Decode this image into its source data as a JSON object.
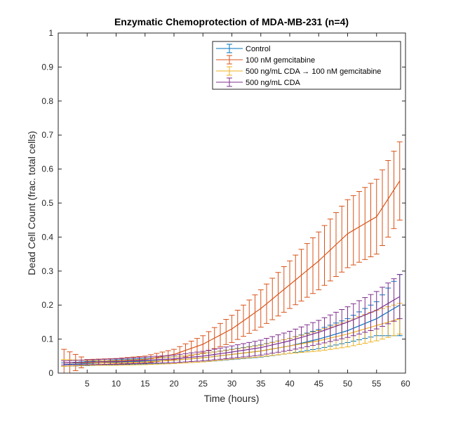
{
  "chart_data": {
    "type": "line",
    "title": "Enzymatic Chemoprotection of MDA-MB-231 (n=4)",
    "xlabel": "Time (hours)",
    "ylabel": "Dead Cell Count (frac. total cells)",
    "xlim": [
      0,
      60
    ],
    "ylim": [
      0,
      1
    ],
    "xticks": [
      5,
      10,
      15,
      20,
      25,
      30,
      35,
      40,
      45,
      50,
      55,
      60
    ],
    "yticks": [
      0,
      0.1,
      0.2,
      0.3,
      0.4,
      0.5,
      0.6,
      0.7,
      0.8,
      0.9,
      1
    ],
    "ytick_labels": [
      "0",
      "0.1",
      "0.2",
      "0.3",
      "0.4",
      "0.5",
      "0.6",
      "0.7",
      "0.8",
      "0.9",
      "1"
    ],
    "grid": false,
    "legend_position": "top-right",
    "error_bars": true,
    "x": [
      1,
      59
    ],
    "series": [
      {
        "name": "Control",
        "color": "#0072bd",
        "x": [
          1,
          5,
          10,
          15,
          20,
          25,
          30,
          35,
          40,
          45,
          50,
          55,
          59
        ],
        "y": [
          0.025,
          0.028,
          0.032,
          0.035,
          0.038,
          0.045,
          0.055,
          0.065,
          0.08,
          0.1,
          0.125,
          0.16,
          0.2
        ],
        "err": [
          0.005,
          0.006,
          0.007,
          0.008,
          0.01,
          0.012,
          0.015,
          0.018,
          0.022,
          0.028,
          0.035,
          0.05,
          0.09
        ]
      },
      {
        "name": "100 nM gemcitabine",
        "color": "#d95319",
        "x": [
          1,
          5,
          10,
          15,
          20,
          25,
          30,
          35,
          40,
          45,
          50,
          55,
          59
        ],
        "y": [
          0.03,
          0.032,
          0.035,
          0.04,
          0.055,
          0.085,
          0.13,
          0.19,
          0.26,
          0.33,
          0.41,
          0.46,
          0.565
        ],
        "err": [
          0.04,
          0.008,
          0.008,
          0.01,
          0.015,
          0.025,
          0.04,
          0.055,
          0.07,
          0.085,
          0.1,
          0.11,
          0.115
        ]
      },
      {
        "name": "500 ng/mL CDA → 100 nM gemcitabine",
        "color": "#edb120",
        "x": [
          1,
          5,
          10,
          15,
          20,
          25,
          30,
          35,
          40,
          45,
          50,
          55,
          59
        ],
        "y": [
          0.03,
          0.03,
          0.03,
          0.033,
          0.038,
          0.045,
          0.055,
          0.065,
          0.08,
          0.095,
          0.115,
          0.14,
          0.16
        ],
        "err": [
          0.01,
          0.007,
          0.007,
          0.008,
          0.01,
          0.012,
          0.014,
          0.017,
          0.022,
          0.03,
          0.038,
          0.045,
          0.045
        ]
      },
      {
        "name": "500 ng/mL CDA",
        "color": "#7e2f8e",
        "x": [
          1,
          5,
          10,
          15,
          20,
          25,
          30,
          35,
          40,
          45,
          50,
          55,
          59
        ],
        "y": [
          0.03,
          0.032,
          0.034,
          0.038,
          0.042,
          0.05,
          0.062,
          0.075,
          0.095,
          0.12,
          0.15,
          0.185,
          0.225
        ],
        "err": [
          0.006,
          0.007,
          0.008,
          0.009,
          0.011,
          0.014,
          0.018,
          0.022,
          0.028,
          0.035,
          0.045,
          0.055,
          0.065
        ]
      }
    ]
  }
}
